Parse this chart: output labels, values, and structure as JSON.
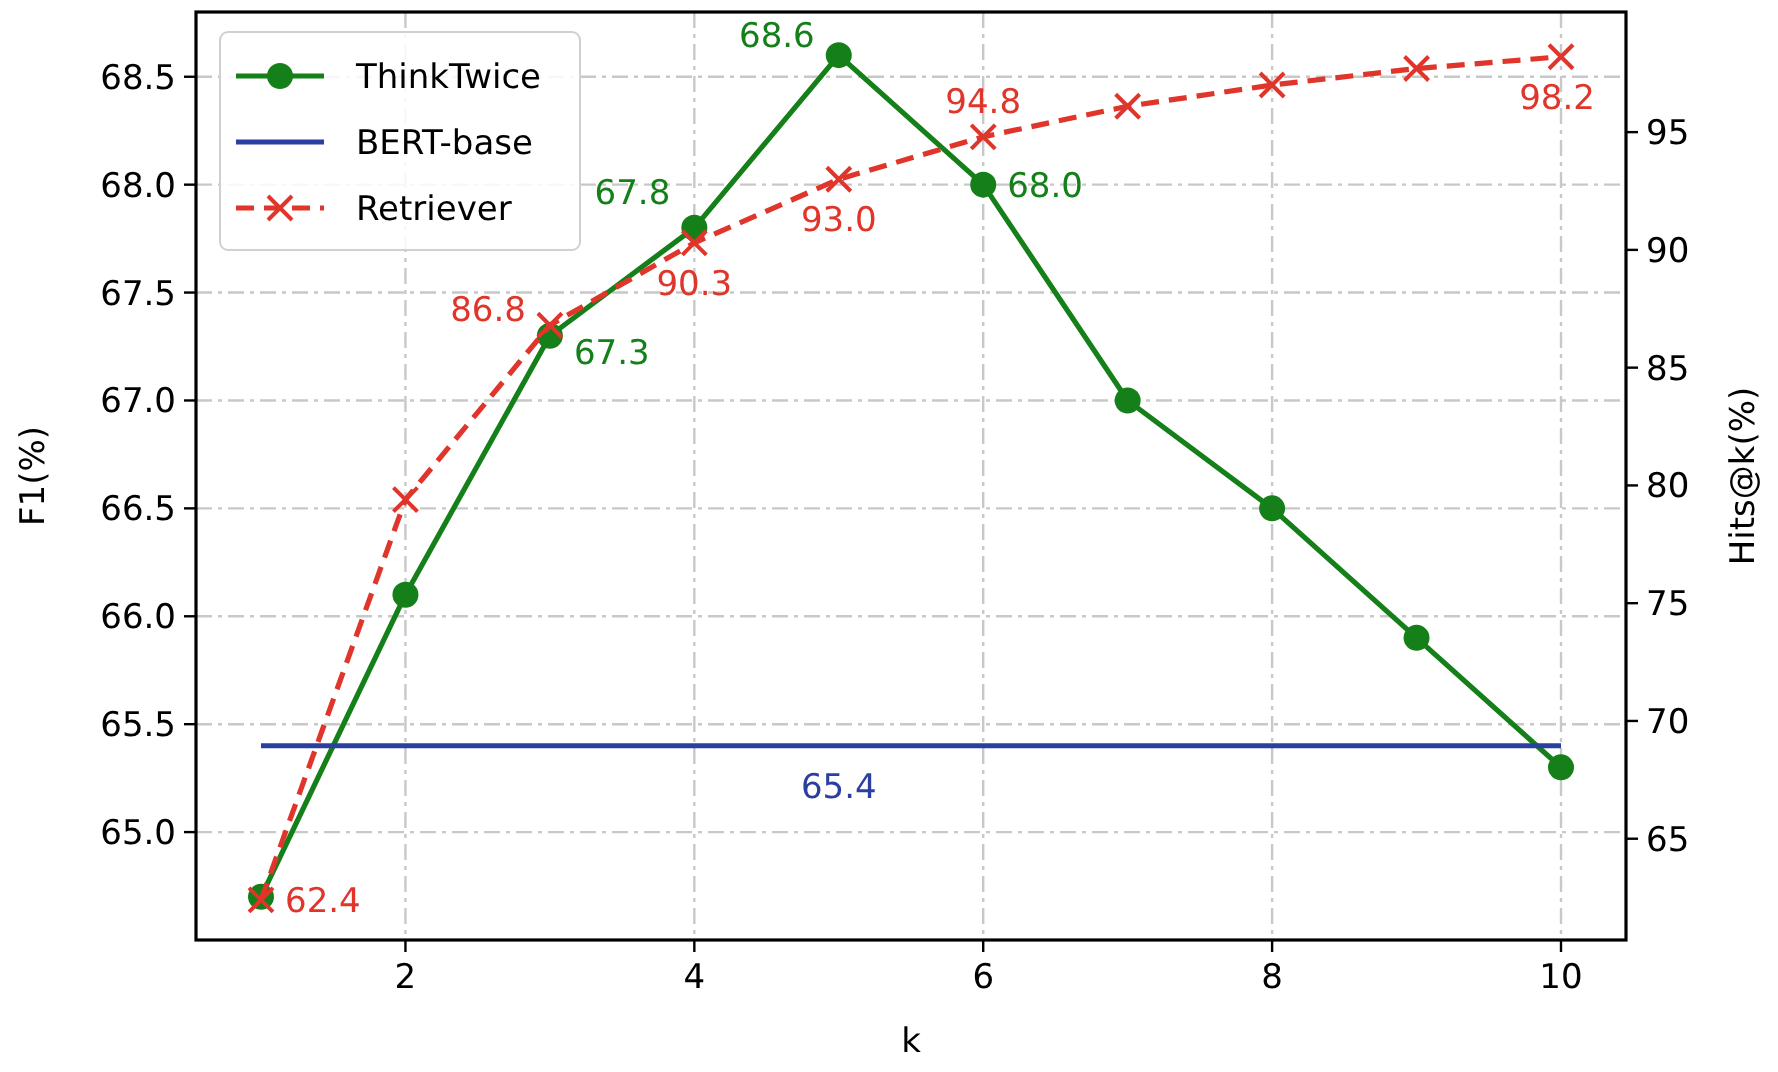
{
  "chart_data": {
    "type": "line",
    "xlabel": "k",
    "ylabel": "F1(%)",
    "y2label": "Hits@k(%)",
    "xlim": [
      0.55,
      10.45
    ],
    "xticks": [
      2,
      4,
      6,
      8,
      10
    ],
    "ylim": [
      64.5,
      68.8
    ],
    "yticks": [
      {
        "value": 65,
        "label": "65.0"
      },
      65.5,
      {
        "value": 66,
        "label": "66.0"
      },
      66.5,
      {
        "value": 67,
        "label": "67.0"
      },
      67.5,
      {
        "value": 68,
        "label": "68.0"
      },
      68.5
    ],
    "y2lim": [
      60.7,
      100.1
    ],
    "y2ticks": [
      65,
      70,
      75,
      80,
      85,
      90,
      95
    ],
    "grid": true,
    "legend": "top left",
    "series": [
      {
        "name": "ThinkTwice",
        "color": "#15801a",
        "x": [
          1,
          2,
          3,
          4,
          5,
          6,
          7,
          8,
          9,
          10
        ],
        "values": [
          64.7,
          66.1,
          67.3,
          67.8,
          68.6,
          68.0,
          67.0,
          66.5,
          65.9,
          65.3
        ],
        "marker": "circle",
        "line_style": "solid",
        "value_labels": [
          null,
          null,
          "67.3",
          "67.8",
          "68.6",
          "68.0",
          null,
          null,
          null,
          null
        ]
      },
      {
        "name": "BERT-base",
        "color": "#2b3fa0",
        "x": [
          1,
          10
        ],
        "values": [
          65.4,
          65.4
        ],
        "marker": "none",
        "line_style": "solid"
      },
      {
        "name": "Retriever",
        "color": "#e0352b",
        "axis": "y2",
        "x": [
          1,
          2,
          3,
          4,
          5,
          6,
          7,
          8,
          9,
          10
        ],
        "values": [
          62.4,
          79.4,
          86.8,
          90.3,
          93.0,
          94.8,
          96.1,
          97.0,
          97.7,
          98.2
        ],
        "marker": "cross",
        "line_style": "dashed",
        "value_labels": [
          "62.4",
          null,
          "86.8",
          "90.3",
          "93.0",
          "94.8",
          null,
          null,
          null,
          "98.2"
        ]
      }
    ],
    "annotations": [
      {
        "text": "65.4",
        "x": 5,
        "y": 65.4
      }
    ]
  }
}
